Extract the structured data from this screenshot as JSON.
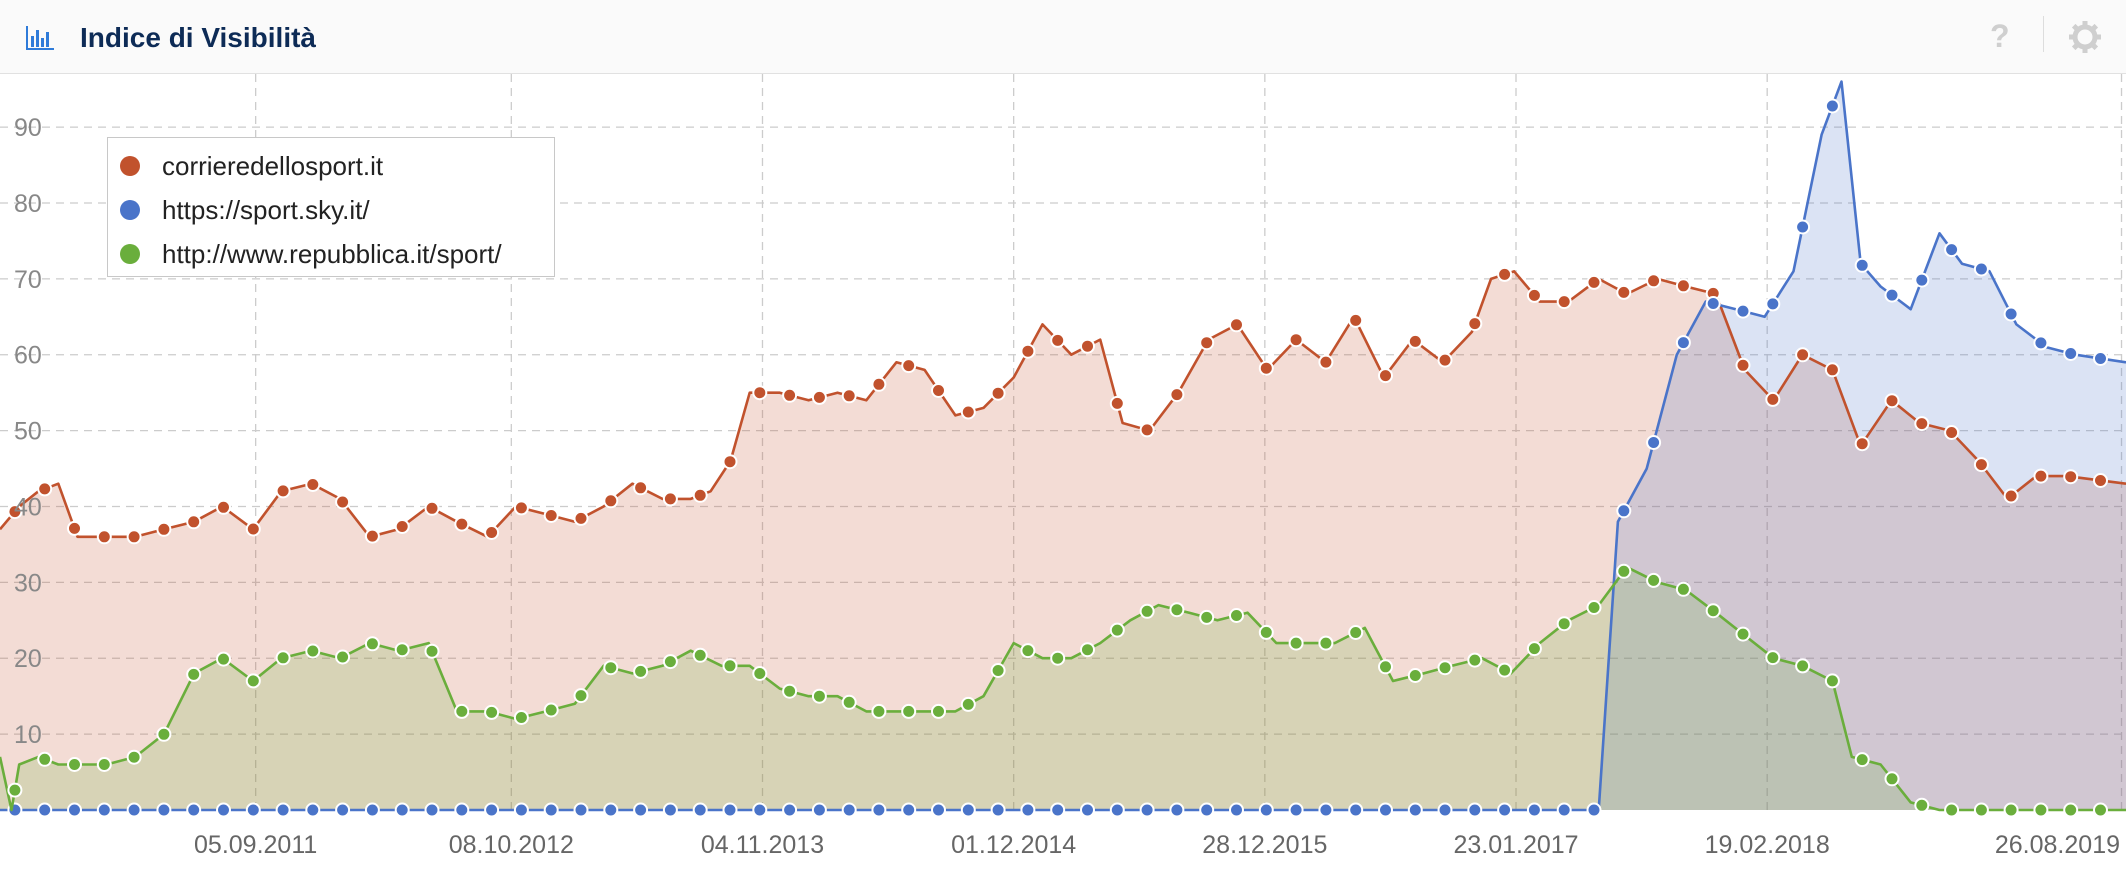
{
  "header": {
    "title": "Indice di Visibilità",
    "chart_icon": "bar-chart-icon",
    "help_icon": "help-icon",
    "help_label": "?",
    "settings_icon": "gear-icon"
  },
  "colors": {
    "series_1": "#c1522d",
    "series_2": "#4a74c9",
    "series_3": "#6aae3c",
    "grid": "#cccccc",
    "title": "#0d2b56"
  },
  "legend": {
    "placement": "top-left",
    "items": [
      {
        "label": "corrieredellosport.it",
        "color": "#c1522d"
      },
      {
        "label": "https://sport.sky.it/",
        "color": "#4a74c9"
      },
      {
        "label": "http://www.repubblica.it/sport/",
        "color": "#6aae3c"
      }
    ]
  },
  "chart_data": {
    "type": "area",
    "title": "Indice di Visibilità",
    "ylim": [
      0,
      97
    ],
    "xlim": [
      "2010-08-02",
      "2019-09-02"
    ],
    "y_ticks": [
      10,
      20,
      30,
      40,
      50,
      60,
      70,
      80,
      90
    ],
    "x_ticks": [
      "05.09.2011",
      "08.10.2012",
      "04.11.2013",
      "01.12.2014",
      "28.12.2015",
      "23.01.2017",
      "19.02.2018",
      "26.08.2019"
    ],
    "grid": true,
    "series": [
      {
        "name": "corrieredellosport.it",
        "color": "#c1522d",
        "points": [
          [
            "2010-08-02",
            37
          ],
          [
            "2010-09-01",
            40
          ],
          [
            "2010-10-01",
            42
          ],
          [
            "2010-11-01",
            43
          ],
          [
            "2010-12-01",
            36
          ],
          [
            "2011-01-15",
            36
          ],
          [
            "2011-03-01",
            36
          ],
          [
            "2011-04-15",
            37
          ],
          [
            "2011-06-01",
            38
          ],
          [
            "2011-07-15",
            40
          ],
          [
            "2011-09-01",
            37
          ],
          [
            "2011-10-15",
            42
          ],
          [
            "2011-12-01",
            43
          ],
          [
            "2012-01-15",
            41
          ],
          [
            "2012-03-01",
            36
          ],
          [
            "2012-04-15",
            37
          ],
          [
            "2012-06-01",
            40
          ],
          [
            "2012-07-15",
            38
          ],
          [
            "2012-09-01",
            36
          ],
          [
            "2012-10-15",
            40
          ],
          [
            "2012-12-01",
            39
          ],
          [
            "2013-01-15",
            38
          ],
          [
            "2013-03-01",
            40
          ],
          [
            "2013-04-15",
            43
          ],
          [
            "2013-06-01",
            41
          ],
          [
            "2013-07-15",
            41
          ],
          [
            "2013-08-15",
            42
          ],
          [
            "2013-09-15",
            46
          ],
          [
            "2013-10-15",
            55
          ],
          [
            "2013-12-01",
            55
          ],
          [
            "2014-01-15",
            54
          ],
          [
            "2014-03-01",
            55
          ],
          [
            "2014-04-15",
            54
          ],
          [
            "2014-06-01",
            59
          ],
          [
            "2014-07-15",
            58
          ],
          [
            "2014-09-01",
            52
          ],
          [
            "2014-10-15",
            53
          ],
          [
            "2014-12-01",
            57
          ],
          [
            "2015-01-15",
            64
          ],
          [
            "2015-03-01",
            60
          ],
          [
            "2015-04-15",
            62
          ],
          [
            "2015-05-20",
            51
          ],
          [
            "2015-07-01",
            50
          ],
          [
            "2015-08-15",
            55
          ],
          [
            "2015-10-01",
            62
          ],
          [
            "2015-11-15",
            64
          ],
          [
            "2016-01-01",
            58
          ],
          [
            "2016-02-15",
            62
          ],
          [
            "2016-04-01",
            59
          ],
          [
            "2016-05-15",
            65
          ],
          [
            "2016-07-01",
            57
          ],
          [
            "2016-08-15",
            62
          ],
          [
            "2016-10-01",
            59
          ],
          [
            "2016-11-15",
            63
          ],
          [
            "2016-12-15",
            70
          ],
          [
            "2017-01-20",
            71
          ],
          [
            "2017-03-01",
            67
          ],
          [
            "2017-04-15",
            67
          ],
          [
            "2017-06-01",
            70
          ],
          [
            "2017-07-15",
            68
          ],
          [
            "2017-09-01",
            70
          ],
          [
            "2017-10-15",
            69
          ],
          [
            "2017-12-01",
            68
          ],
          [
            "2018-01-15",
            58
          ],
          [
            "2018-03-01",
            54
          ],
          [
            "2018-04-15",
            60
          ],
          [
            "2018-06-01",
            58
          ],
          [
            "2018-07-15",
            48
          ],
          [
            "2018-09-01",
            54
          ],
          [
            "2018-10-15",
            51
          ],
          [
            "2018-12-01",
            50
          ],
          [
            "2019-01-15",
            46
          ],
          [
            "2019-03-01",
            41
          ],
          [
            "2019-04-15",
            44
          ],
          [
            "2019-06-01",
            44
          ],
          [
            "2019-09-02",
            43
          ]
        ]
      },
      {
        "name": "https://sport.sky.it/",
        "color": "#4a74c9",
        "points": [
          [
            "2010-08-02",
            0
          ],
          [
            "2017-06-01",
            0
          ],
          [
            "2017-07-01",
            38
          ],
          [
            "2017-08-15",
            45
          ],
          [
            "2017-10-01",
            60
          ],
          [
            "2017-11-15",
            67
          ],
          [
            "2018-01-01",
            66
          ],
          [
            "2018-02-15",
            65
          ],
          [
            "2018-04-01",
            71
          ],
          [
            "2018-05-15",
            89
          ],
          [
            "2018-06-15",
            96
          ],
          [
            "2018-07-15",
            72
          ],
          [
            "2018-08-15",
            69
          ],
          [
            "2018-10-01",
            66
          ],
          [
            "2018-11-15",
            76
          ],
          [
            "2018-12-20",
            72
          ],
          [
            "2019-02-01",
            71
          ],
          [
            "2019-03-15",
            64
          ],
          [
            "2019-05-01",
            61
          ],
          [
            "2019-06-15",
            60
          ],
          [
            "2019-09-02",
            59
          ]
        ]
      },
      {
        "name": "http://www.repubblica.it/sport/",
        "color": "#6aae3c",
        "points": [
          [
            "2010-08-02",
            7
          ],
          [
            "2010-08-20",
            0
          ],
          [
            "2010-09-01",
            6
          ],
          [
            "2010-10-01",
            7
          ],
          [
            "2010-11-01",
            6
          ],
          [
            "2010-12-01",
            6
          ],
          [
            "2011-01-15",
            6
          ],
          [
            "2011-03-01",
            7
          ],
          [
            "2011-04-15",
            10
          ],
          [
            "2011-06-01",
            18
          ],
          [
            "2011-07-15",
            20
          ],
          [
            "2011-09-01",
            17
          ],
          [
            "2011-10-15",
            20
          ],
          [
            "2011-12-01",
            21
          ],
          [
            "2012-01-15",
            20
          ],
          [
            "2012-03-01",
            22
          ],
          [
            "2012-04-15",
            21
          ],
          [
            "2012-06-01",
            22
          ],
          [
            "2012-07-15",
            13
          ],
          [
            "2012-09-01",
            13
          ],
          [
            "2012-10-15",
            12
          ],
          [
            "2012-12-01",
            13
          ],
          [
            "2013-01-15",
            14
          ],
          [
            "2013-03-01",
            19
          ],
          [
            "2013-04-15",
            18
          ],
          [
            "2013-06-01",
            19
          ],
          [
            "2013-07-15",
            21
          ],
          [
            "2013-09-01",
            19
          ],
          [
            "2013-10-15",
            19
          ],
          [
            "2013-12-01",
            16
          ],
          [
            "2014-01-15",
            15
          ],
          [
            "2014-03-01",
            15
          ],
          [
            "2014-04-15",
            13
          ],
          [
            "2014-06-01",
            13
          ],
          [
            "2014-07-15",
            13
          ],
          [
            "2014-09-01",
            13
          ],
          [
            "2014-10-15",
            15
          ],
          [
            "2014-12-01",
            22
          ],
          [
            "2015-01-15",
            20
          ],
          [
            "2015-03-01",
            20
          ],
          [
            "2015-04-15",
            22
          ],
          [
            "2015-06-01",
            25
          ],
          [
            "2015-07-15",
            27
          ],
          [
            "2015-09-01",
            26
          ],
          [
            "2015-10-15",
            25
          ],
          [
            "2015-12-01",
            26
          ],
          [
            "2016-01-15",
            22
          ],
          [
            "2016-03-01",
            22
          ],
          [
            "2016-04-15",
            22
          ],
          [
            "2016-06-01",
            24
          ],
          [
            "2016-07-15",
            17
          ],
          [
            "2016-09-01",
            18
          ],
          [
            "2016-10-15",
            19
          ],
          [
            "2016-12-01",
            20
          ],
          [
            "2017-01-15",
            18
          ],
          [
            "2017-03-01",
            22
          ],
          [
            "2017-04-15",
            25
          ],
          [
            "2017-06-01",
            27
          ],
          [
            "2017-07-15",
            32
          ],
          [
            "2017-09-01",
            30
          ],
          [
            "2017-10-15",
            29
          ],
          [
            "2017-12-01",
            26
          ],
          [
            "2018-01-15",
            23
          ],
          [
            "2018-03-01",
            20
          ],
          [
            "2018-04-15",
            19
          ],
          [
            "2018-06-01",
            17
          ],
          [
            "2018-07-01",
            7
          ],
          [
            "2018-08-15",
            6
          ],
          [
            "2018-10-01",
            1
          ],
          [
            "2018-11-15",
            0
          ],
          [
            "2019-01-01",
            0
          ],
          [
            "2019-04-01",
            0
          ],
          [
            "2019-09-02",
            0
          ]
        ]
      }
    ]
  }
}
